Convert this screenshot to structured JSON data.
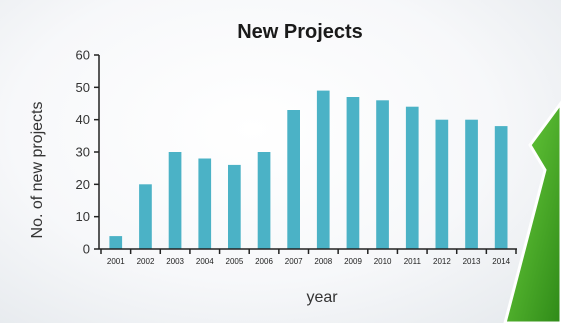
{
  "chart_data": {
    "type": "bar",
    "title": "New Projects",
    "xlabel": "year",
    "ylabel": "No. of new projects",
    "categories": [
      "2001",
      "2002",
      "2003",
      "2004",
      "2005",
      "2006",
      "2007",
      "2008",
      "2009",
      "2010",
      "2011",
      "2012",
      "2013",
      "2014"
    ],
    "values": [
      4,
      20,
      30,
      28,
      26,
      30,
      43,
      49,
      47,
      46,
      44,
      40,
      40,
      38
    ],
    "ylim": [
      0,
      60
    ],
    "yticks": [
      0,
      10,
      20,
      30,
      40,
      50,
      60
    ],
    "ytick_labels": [
      "0",
      "10",
      "20",
      "30",
      "40",
      "50",
      "60"
    ],
    "grid": false,
    "bar_color": "#4bb2c6"
  },
  "decor": {
    "arrow_color": "#2f8a18",
    "arrow_highlight": "#6fd33f"
  }
}
